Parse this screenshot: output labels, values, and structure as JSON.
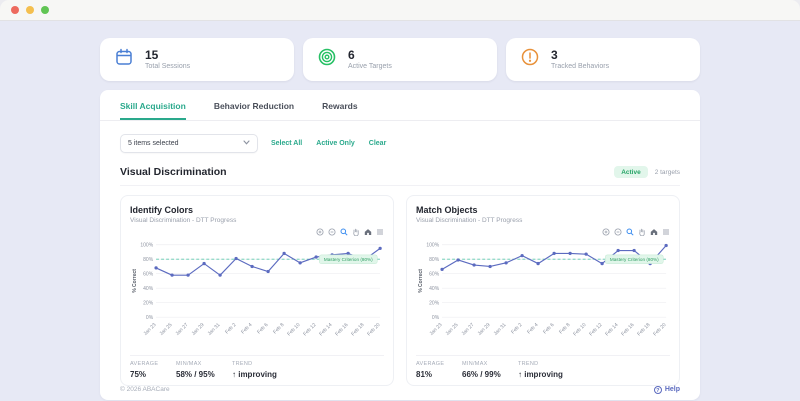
{
  "colors": {
    "accent_teal": "#2aa98c",
    "badge_green": "#27a567",
    "line_indigo": "#5c6bc0",
    "mastery_teal": "#5ec9ae",
    "help_indigo": "#5b6abf",
    "stat_blue": "#4a7fd4",
    "stat_green": "#27c065",
    "stat_orange": "#e8913a",
    "background_lavender": "#e7e9f5"
  },
  "stats_cards": [
    {
      "icon": "calendar-icon",
      "value": "15",
      "label": "Total Sessions"
    },
    {
      "icon": "target-icon",
      "value": "6",
      "label": "Active Targets"
    },
    {
      "icon": "alert-circle-icon",
      "value": "3",
      "label": "Tracked Behaviors"
    }
  ],
  "tabs": [
    {
      "label": "Skill Acquisition",
      "active": true
    },
    {
      "label": "Behavior Reduction",
      "active": false
    },
    {
      "label": "Rewards",
      "active": false
    }
  ],
  "filter_bar": {
    "dropdown_value": "5 items selected",
    "dropdown_icon": "chevron-down-icon",
    "select_all": "Select All",
    "active_only": "Active Only",
    "clear": "Clear"
  },
  "section": {
    "title": "Visual Discrimination",
    "badge": "Active",
    "targets": "2 targets"
  },
  "chart_toolbar_icons": [
    "zoom-in-icon",
    "zoom-out-icon",
    "search-icon",
    "pan-icon",
    "home-icon",
    "menu-icon"
  ],
  "chart_data": [
    {
      "type": "line",
      "title": "Identify Colors",
      "subtitle": "Visual Discrimination - DTT Progress",
      "ylabel": "% Correct",
      "ylim": [
        0,
        100
      ],
      "grid": true,
      "x_tick_rotation": -45,
      "yticks": [
        "0%",
        "20%",
        "40%",
        "60%",
        "80%",
        "100%"
      ],
      "categories": [
        "Jan 23",
        "Jan 25",
        "Jan 27",
        "Jan 29",
        "Jan 31",
        "Feb 2",
        "Feb 4",
        "Feb 6",
        "Feb 8",
        "Feb 10",
        "Feb 12",
        "Feb 14",
        "Feb 16",
        "Feb 18",
        "Feb 20"
      ],
      "values": [
        68,
        58,
        58,
        74,
        58,
        81,
        70,
        63,
        88,
        75,
        83,
        86,
        88,
        79,
        95
      ],
      "line_color": "#5c6bc0",
      "mastery_line": {
        "value": 80,
        "label": "Mastery Criterion (80%)"
      },
      "stats": {
        "average_label": "AVERAGE",
        "average": "75%",
        "minmax_label": "MIN/MAX",
        "minmax": "58% / 95%",
        "trend_label": "TREND",
        "trend": "↑ improving"
      }
    },
    {
      "type": "line",
      "title": "Match Objects",
      "subtitle": "Visual Discrimination - DTT Progress",
      "ylabel": "% Correct",
      "ylim": [
        0,
        100
      ],
      "grid": true,
      "x_tick_rotation": -45,
      "yticks": [
        "0%",
        "20%",
        "40%",
        "60%",
        "80%",
        "100%"
      ],
      "categories": [
        "Jan 23",
        "Jan 25",
        "Jan 27",
        "Jan 29",
        "Jan 31",
        "Feb 2",
        "Feb 4",
        "Feb 6",
        "Feb 8",
        "Feb 10",
        "Feb 12",
        "Feb 14",
        "Feb 16",
        "Feb 18",
        "Feb 20"
      ],
      "values": [
        66,
        79,
        72,
        70,
        75,
        85,
        74,
        88,
        88,
        87,
        74,
        92,
        92,
        74,
        99
      ],
      "line_color": "#5c6bc0",
      "mastery_line": {
        "value": 80,
        "label": "Mastery Criterion (80%)"
      },
      "stats": {
        "average_label": "AVERAGE",
        "average": "81%",
        "minmax_label": "MIN/MAX",
        "minmax": "66% / 99%",
        "trend_label": "TREND",
        "trend": "↑ improving"
      }
    }
  ],
  "footer": {
    "copyright": "© 2026 ABACare",
    "help": "Help"
  }
}
